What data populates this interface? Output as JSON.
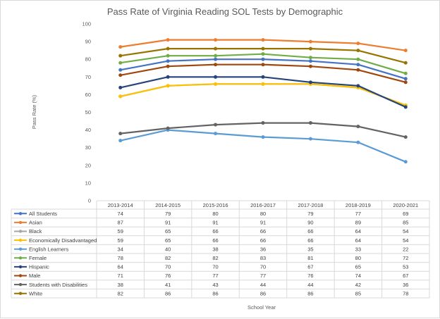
{
  "chart_data": {
    "type": "line",
    "title": "Pass Rate of Virginia Reading SOL Tests by Demographic",
    "xlabel": "School Year",
    "ylabel": "Pass Rate (%)",
    "ylim": [
      0,
      100
    ],
    "yticks": [
      0,
      10,
      20,
      30,
      40,
      50,
      60,
      70,
      80,
      90,
      100
    ],
    "grid": false,
    "legend": "data-table",
    "categories": [
      "2013-2014",
      "2014-2015",
      "2015-2016",
      "2016-2017",
      "2017-2018",
      "2018-2019",
      "2020-2021"
    ],
    "series": [
      {
        "name": "All Students",
        "color": "#4472c4",
        "values": [
          74,
          79,
          80,
          80,
          79,
          77,
          69
        ]
      },
      {
        "name": "Asian",
        "color": "#ed7d31",
        "values": [
          87,
          91,
          91,
          91,
          90,
          89,
          85
        ]
      },
      {
        "name": "Black",
        "color": "#a5a5a5",
        "values": [
          59,
          65,
          66,
          66,
          66,
          64,
          54
        ]
      },
      {
        "name": "Economically Disadvantaged",
        "color": "#ffc000",
        "values": [
          59,
          65,
          66,
          66,
          66,
          64,
          54
        ]
      },
      {
        "name": "English Learners",
        "color": "#5b9bd5",
        "values": [
          34,
          40,
          38,
          36,
          35,
          33,
          22
        ]
      },
      {
        "name": "Female",
        "color": "#70ad47",
        "values": [
          78,
          82,
          82,
          83,
          81,
          80,
          72
        ]
      },
      {
        "name": "Hispanic",
        "color": "#264478",
        "values": [
          64,
          70,
          70,
          70,
          67,
          65,
          53
        ]
      },
      {
        "name": "Male",
        "color": "#9e480e",
        "values": [
          71,
          76,
          77,
          77,
          76,
          74,
          67
        ]
      },
      {
        "name": "Students with Disabilities",
        "color": "#636363",
        "values": [
          38,
          41,
          43,
          44,
          44,
          42,
          36
        ]
      },
      {
        "name": "White",
        "color": "#997300",
        "values": [
          82,
          86,
          86,
          86,
          86,
          85,
          78
        ]
      }
    ]
  }
}
